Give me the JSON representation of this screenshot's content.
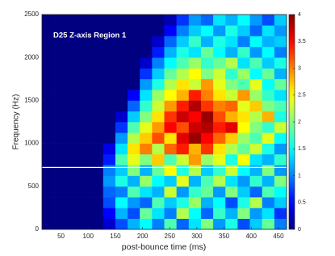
{
  "chart_data": {
    "type": "heatmap",
    "title": "D25 Z-axis Region 1",
    "xlabel": "post-bounce time (ms)",
    "ylabel": "Frequency (Hz)",
    "xbins": [
      15,
      37.5,
      60,
      82.5,
      105,
      127.5,
      150,
      172.5,
      195,
      217.5,
      240,
      262.5,
      285,
      307.5,
      330,
      352.5,
      375,
      397.5,
      420,
      442.5,
      465
    ],
    "ybins": [
      0,
      125,
      250,
      375,
      500,
      625,
      750,
      875,
      1000,
      1125,
      1250,
      1375,
      1500,
      1625,
      1750,
      1875,
      2000,
      2125,
      2250,
      2375,
      2500
    ],
    "values": [
      [
        0,
        0,
        0,
        0,
        0,
        0.3,
        0.8,
        1.2,
        1.5,
        1,
        1.8,
        0.9,
        1.4,
        2,
        1.1,
        1.6,
        0.8,
        1.3,
        1.9,
        1
      ],
      [
        0,
        0,
        0,
        0,
        0,
        0.5,
        1.2,
        0.8,
        1.9,
        1.4,
        1,
        2.2,
        1.5,
        0.9,
        1.7,
        1.2,
        2,
        1.1,
        1.4,
        0.7
      ],
      [
        0,
        0,
        0,
        0,
        0,
        0.8,
        1.5,
        1.1,
        0.9,
        1.8,
        1.3,
        1.6,
        2.1,
        1.2,
        1.5,
        0.8,
        1.6,
        2.2,
        1,
        1.3
      ],
      [
        0,
        0,
        0,
        0,
        0,
        0.9,
        1,
        1.8,
        1.4,
        1.2,
        2.3,
        1.1,
        1.7,
        1.9,
        1.1,
        2,
        1.3,
        0.9,
        1.8,
        1.5
      ],
      [
        0,
        0,
        0,
        0,
        0,
        1.1,
        1.6,
        1.2,
        2.1,
        1.5,
        1.3,
        2.4,
        1.2,
        1.8,
        2.2,
        1.4,
        1.1,
        1.7,
        1.2,
        2
      ],
      [
        0,
        0,
        0,
        0,
        0,
        1,
        1.3,
        2,
        1.2,
        1.9,
        2.5,
        1.6,
        2.2,
        1.3,
        1.7,
        2.3,
        1.5,
        1.2,
        2,
        1.1
      ],
      [
        0,
        0,
        0,
        0,
        0,
        0.6,
        1.8,
        2.4,
        2,
        2.7,
        1.8,
        2.3,
        2.9,
        2.1,
        2.4,
        1.6,
        2.5,
        1.4,
        1.2,
        1.7
      ],
      [
        0,
        0,
        0,
        0,
        0,
        0.4,
        1.4,
        2.6,
        3,
        2.2,
        3.1,
        3.4,
        2.8,
        3.3,
        2.6,
        2.2,
        1.9,
        2.3,
        1.6,
        1.1
      ],
      [
        0,
        0,
        0,
        0,
        0,
        0,
        1.1,
        2.2,
        2.7,
        3.2,
        2.6,
        3.6,
        3.9,
        3.5,
        3.1,
        2.7,
        2.1,
        1.8,
        2.4,
        1.5
      ],
      [
        0,
        0,
        0,
        0,
        0,
        0,
        0.7,
        1.8,
        2.4,
        2.9,
        3.5,
        3.2,
        3.7,
        3.8,
        3.4,
        3.6,
        2.5,
        2,
        1.7,
        2.3
      ],
      [
        0,
        0,
        0,
        0,
        0,
        0,
        0.3,
        1.3,
        2,
        2.6,
        3.3,
        3.7,
        3.5,
        3.9,
        3.2,
        2.8,
        2.6,
        2.2,
        2.8,
        1.6
      ],
      [
        0,
        0,
        0,
        0,
        0,
        0,
        0,
        0.9,
        1.7,
        2.3,
        2.9,
        3.4,
        3.8,
        3.3,
        3,
        3.1,
        2.4,
        2.7,
        2,
        1.8
      ],
      [
        0,
        0,
        0,
        0,
        0,
        0,
        0,
        0.5,
        1.4,
        2.1,
        2.5,
        2.8,
        3.4,
        3,
        2.6,
        2.3,
        2.9,
        2.1,
        1.7,
        1.4
      ],
      [
        0,
        0,
        0,
        0,
        0,
        0,
        0,
        0,
        1.1,
        1.6,
        2.2,
        2.6,
        2.3,
        2.9,
        2.4,
        2,
        1.8,
        2.4,
        1.5,
        1.9
      ],
      [
        0,
        0,
        0,
        0,
        0,
        0,
        0,
        0,
        0.7,
        1.3,
        1.9,
        2.2,
        2.5,
        2,
        2.3,
        1.7,
        2.1,
        1.5,
        1.9,
        1.2
      ],
      [
        0,
        0,
        0,
        0,
        0,
        0,
        0,
        0,
        0.3,
        1,
        1.5,
        1.8,
        2.1,
        1.7,
        1.9,
        2.2,
        1.4,
        1.8,
        1.3,
        1.6
      ],
      [
        0,
        0,
        0,
        0,
        0,
        0,
        0,
        0,
        0,
        0.6,
        1.2,
        1.6,
        1.4,
        1.9,
        1.5,
        1.2,
        1.7,
        1.1,
        1.5,
        1
      ],
      [
        0,
        0,
        0,
        0,
        0,
        0,
        0,
        0,
        0,
        0.3,
        0.9,
        1.3,
        1.7,
        1.2,
        1.6,
        1.4,
        1,
        1.5,
        1.2,
        1.3
      ],
      [
        0,
        0,
        0,
        0,
        0,
        0,
        0,
        0,
        0,
        0,
        0.5,
        1,
        1.3,
        1.5,
        1.1,
        1.6,
        1.3,
        0.9,
        1.4,
        1.1
      ],
      [
        0,
        0,
        0,
        0,
        0,
        0,
        0,
        0,
        0,
        0,
        0.2,
        0.7,
        1.1,
        0.9,
        1.4,
        1.2,
        1.5,
        1.1,
        0.8,
        1.3
      ]
    ],
    "xlim": [
      15,
      465
    ],
    "ylim": [
      0,
      2500
    ],
    "xticks": [
      50,
      100,
      150,
      200,
      250,
      300,
      350,
      400,
      450
    ],
    "yticks": [
      0,
      500,
      1000,
      1500,
      2000,
      2500
    ],
    "clim": [
      0,
      4
    ],
    "cticks": [
      0,
      0.5,
      1,
      1.5,
      2,
      2.5,
      3,
      3.5,
      4
    ],
    "colormap": "jet",
    "hline": 720,
    "hline_color": "#ffffff"
  }
}
